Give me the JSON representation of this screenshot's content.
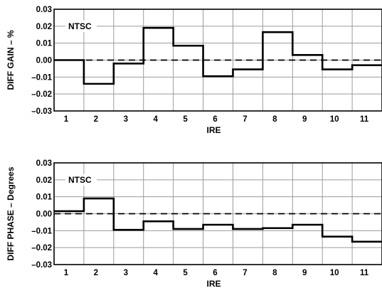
{
  "chart_data": [
    {
      "type": "line",
      "step": true,
      "annotation": "NTSC",
      "ylabel": "DIFF GAIN – %",
      "xlabel": "IRE",
      "categories": [
        "1",
        "2",
        "3",
        "4",
        "5",
        "6",
        "7",
        "8",
        "9",
        "10",
        "11"
      ],
      "y_ticks": [
        "0.03",
        "0.02",
        "0.01",
        "0.00",
        "–0.01",
        "–0.02",
        "–0.03"
      ],
      "ylim": [
        -0.03,
        0.03
      ],
      "reference_line": 0,
      "values": [
        0.0,
        -0.014,
        -0.002,
        0.019,
        0.0085,
        -0.0095,
        -0.0055,
        0.0165,
        0.003,
        -0.0055,
        -0.003
      ],
      "grid": true
    },
    {
      "type": "line",
      "step": true,
      "annotation": "NTSC",
      "ylabel": "DIFF PHASE – Degrees",
      "xlabel": "IRE",
      "categories": [
        "1",
        "2",
        "3",
        "4",
        "5",
        "6",
        "7",
        "8",
        "9",
        "10",
        "11"
      ],
      "y_ticks": [
        "0.03",
        "0.02",
        "0.01",
        "0.00",
        "–0.01",
        "–0.02",
        "–0.03"
      ],
      "ylim": [
        -0.03,
        0.03
      ],
      "reference_line": 0,
      "values": [
        0.0015,
        0.009,
        -0.0095,
        -0.0045,
        -0.009,
        -0.0065,
        -0.009,
        -0.0085,
        -0.0065,
        -0.0135,
        -0.0165
      ],
      "grid": true
    }
  ]
}
